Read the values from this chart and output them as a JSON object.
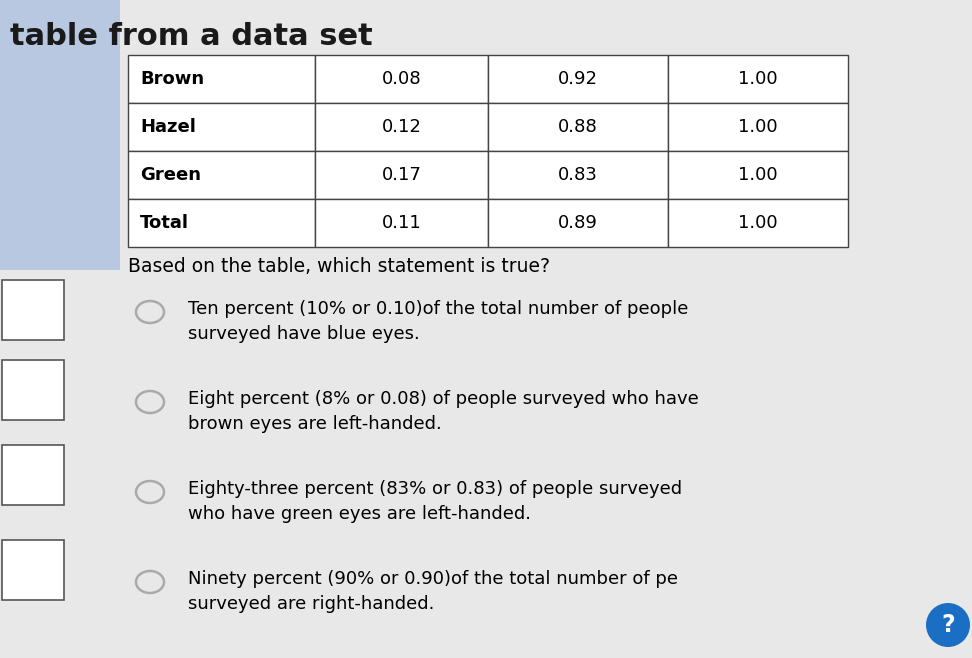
{
  "title": "table from a data set",
  "table_rows": [
    [
      "Brown",
      "0.08",
      "0.92",
      "1.00"
    ],
    [
      "Hazel",
      "0.12",
      "0.88",
      "1.00"
    ],
    [
      "Green",
      "0.17",
      "0.83",
      "1.00"
    ],
    [
      "Total",
      "0.11",
      "0.89",
      "1.00"
    ]
  ],
  "question": "Based on the table, which statement is true?",
  "choices_text": [
    "Ten percent (10% or 0.10)of the total number of people\nsurveyed have blue eyes.",
    "Eight percent (8% or 0.08) of people surveyed who have\nbrown eyes are left-handed.",
    "Eighty-three percent (83% or 0.83) of people surveyed\nwho have green eyes are left-handed.",
    "Ninety percent (90% or 0.90)of the total number of pe\nsurveyed are right-handed."
  ],
  "bg_color": "#e8e8e8",
  "table_bg": "#ffffff",
  "text_color": "#000000",
  "title_color": "#1a1a1a",
  "circle_color": "#aaaaaa",
  "blue_circle_color": "#1a6fc4",
  "blue_rect_color": "#b8c8e0",
  "side_rect_color": "#ffffff",
  "side_rect_border": "#555555"
}
